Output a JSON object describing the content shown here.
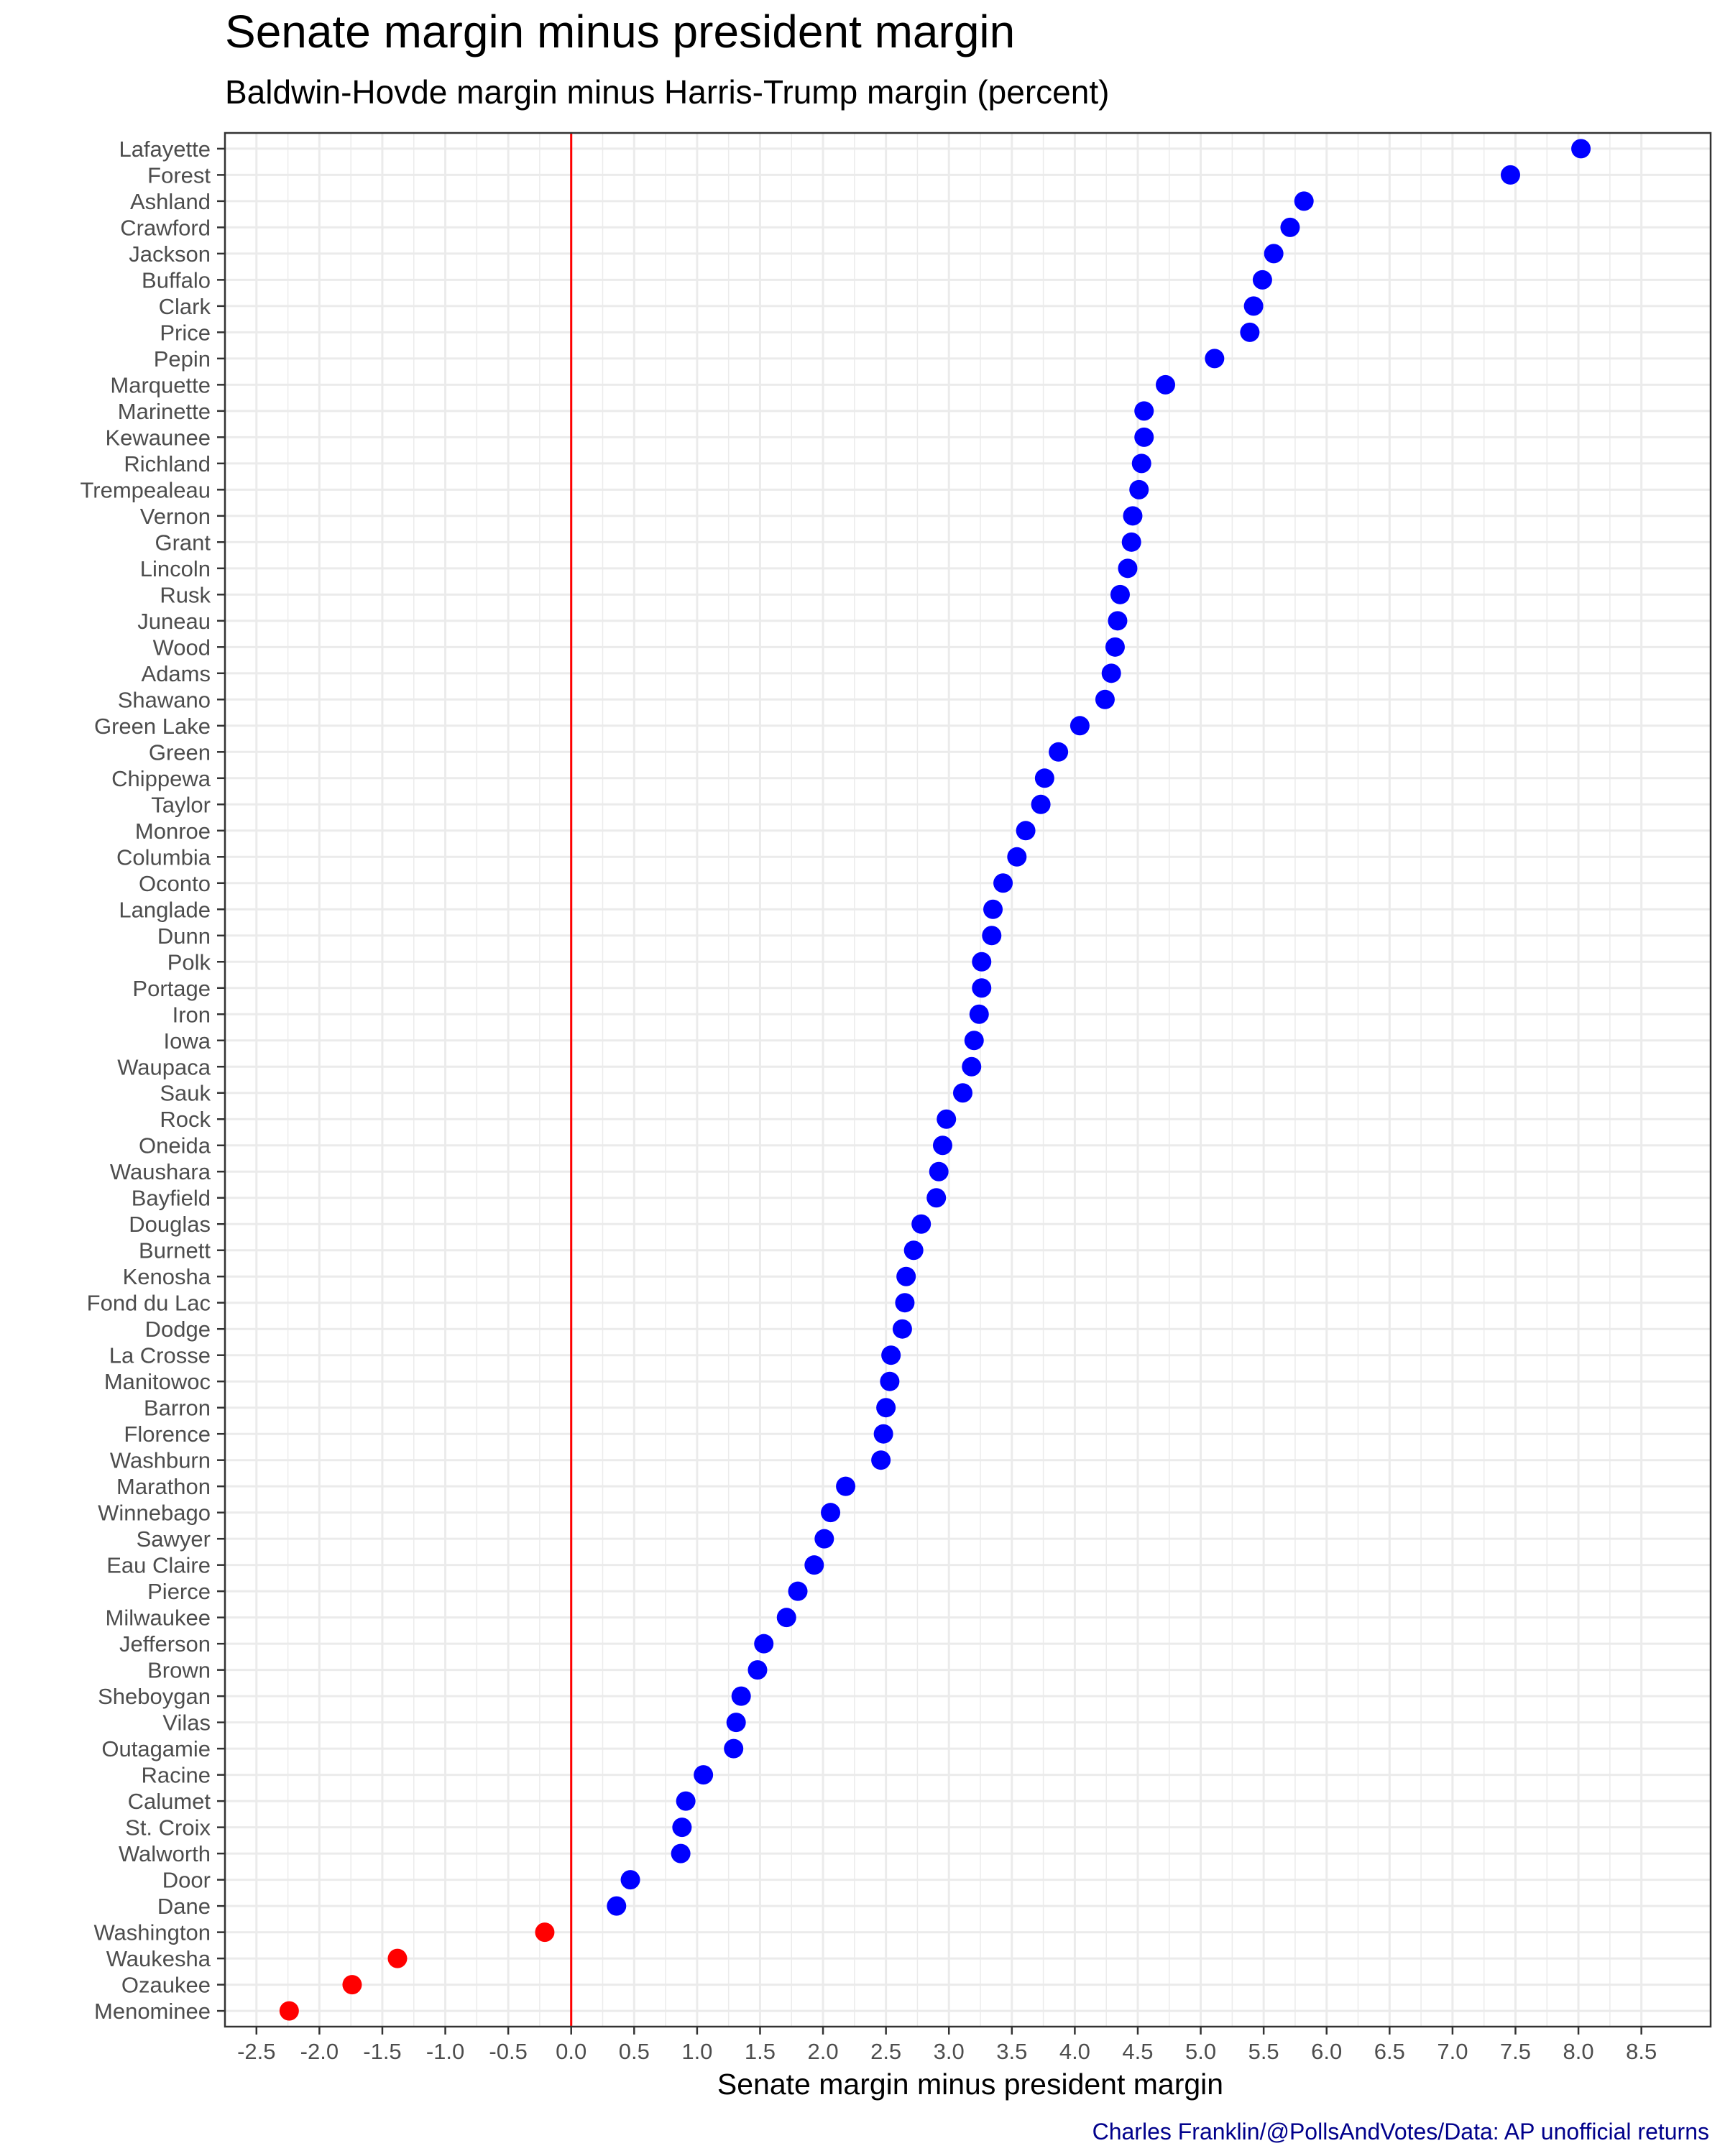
{
  "title": "Senate margin minus president margin",
  "subtitle": "Baldwin-Hovde margin minus Harris-Trump margin (percent)",
  "caption": "Charles Franklin/@PollsAndVotes/Data: AP unofficial returns",
  "chart_data": {
    "type": "scatter",
    "title": "Senate margin minus president margin",
    "subtitle": "Baldwin-Hovde margin minus Harris-Trump margin (percent)",
    "xlabel": "Senate margin minus president margin",
    "ylabel": "",
    "xlim": [
      -2.75,
      9.05
    ],
    "x_ticks": [
      -2.5,
      -2.0,
      -1.5,
      -1.0,
      -0.5,
      0.0,
      0.5,
      1.0,
      1.5,
      2.0,
      2.5,
      3.0,
      3.5,
      4.0,
      4.5,
      5.0,
      5.5,
      6.0,
      6.5,
      7.0,
      7.5,
      8.0,
      8.5
    ],
    "x_tick_labels": [
      "-2.5",
      "-2.0",
      "-1.5",
      "-1.0",
      "-0.5",
      "0.0",
      "0.5",
      "1.0",
      "1.5",
      "2.0",
      "2.5",
      "3.0",
      "3.5",
      "4.0",
      "4.5",
      "5.0",
      "5.5",
      "6.0",
      "6.5",
      "7.0",
      "7.5",
      "8.0",
      "8.5"
    ],
    "reference_line": {
      "x": 0,
      "color": "#ff0000"
    },
    "grid": true,
    "positive_color": "#0000ff",
    "negative_color": "#ff0000",
    "points": [
      {
        "county": "Lafayette",
        "value": 8.02
      },
      {
        "county": "Forest",
        "value": 7.46
      },
      {
        "county": "Ashland",
        "value": 5.82
      },
      {
        "county": "Crawford",
        "value": 5.71
      },
      {
        "county": "Jackson",
        "value": 5.58
      },
      {
        "county": "Buffalo",
        "value": 5.49
      },
      {
        "county": "Clark",
        "value": 5.42
      },
      {
        "county": "Price",
        "value": 5.39
      },
      {
        "county": "Pepin",
        "value": 5.11
      },
      {
        "county": "Marquette",
        "value": 4.72
      },
      {
        "county": "Marinette",
        "value": 4.55
      },
      {
        "county": "Kewaunee",
        "value": 4.55
      },
      {
        "county": "Richland",
        "value": 4.53
      },
      {
        "county": "Trempealeau",
        "value": 4.51
      },
      {
        "county": "Vernon",
        "value": 4.46
      },
      {
        "county": "Grant",
        "value": 4.45
      },
      {
        "county": "Lincoln",
        "value": 4.42
      },
      {
        "county": "Rusk",
        "value": 4.36
      },
      {
        "county": "Juneau",
        "value": 4.34
      },
      {
        "county": "Wood",
        "value": 4.32
      },
      {
        "county": "Adams",
        "value": 4.29
      },
      {
        "county": "Shawano",
        "value": 4.24
      },
      {
        "county": "Green Lake",
        "value": 4.04
      },
      {
        "county": "Green",
        "value": 3.87
      },
      {
        "county": "Chippewa",
        "value": 3.76
      },
      {
        "county": "Taylor",
        "value": 3.73
      },
      {
        "county": "Monroe",
        "value": 3.61
      },
      {
        "county": "Columbia",
        "value": 3.54
      },
      {
        "county": "Oconto",
        "value": 3.43
      },
      {
        "county": "Langlade",
        "value": 3.35
      },
      {
        "county": "Dunn",
        "value": 3.34
      },
      {
        "county": "Polk",
        "value": 3.26
      },
      {
        "county": "Portage",
        "value": 3.26
      },
      {
        "county": "Iron",
        "value": 3.24
      },
      {
        "county": "Iowa",
        "value": 3.2
      },
      {
        "county": "Waupaca",
        "value": 3.18
      },
      {
        "county": "Sauk",
        "value": 3.11
      },
      {
        "county": "Rock",
        "value": 2.98
      },
      {
        "county": "Oneida",
        "value": 2.95
      },
      {
        "county": "Waushara",
        "value": 2.92
      },
      {
        "county": "Bayfield",
        "value": 2.9
      },
      {
        "county": "Douglas",
        "value": 2.78
      },
      {
        "county": "Burnett",
        "value": 2.72
      },
      {
        "county": "Kenosha",
        "value": 2.66
      },
      {
        "county": "Fond du Lac",
        "value": 2.65
      },
      {
        "county": "Dodge",
        "value": 2.63
      },
      {
        "county": "La Crosse",
        "value": 2.54
      },
      {
        "county": "Manitowoc",
        "value": 2.53
      },
      {
        "county": "Barron",
        "value": 2.5
      },
      {
        "county": "Florence",
        "value": 2.48
      },
      {
        "county": "Washburn",
        "value": 2.46
      },
      {
        "county": "Marathon",
        "value": 2.18
      },
      {
        "county": "Winnebago",
        "value": 2.06
      },
      {
        "county": "Sawyer",
        "value": 2.01
      },
      {
        "county": "Eau Claire",
        "value": 1.93
      },
      {
        "county": "Pierce",
        "value": 1.8
      },
      {
        "county": "Milwaukee",
        "value": 1.71
      },
      {
        "county": "Jefferson",
        "value": 1.53
      },
      {
        "county": "Brown",
        "value": 1.48
      },
      {
        "county": "Sheboygan",
        "value": 1.35
      },
      {
        "county": "Vilas",
        "value": 1.31
      },
      {
        "county": "Outagamie",
        "value": 1.29
      },
      {
        "county": "Racine",
        "value": 1.05
      },
      {
        "county": "Calumet",
        "value": 0.91
      },
      {
        "county": "St. Croix",
        "value": 0.88
      },
      {
        "county": "Walworth",
        "value": 0.87
      },
      {
        "county": "Door",
        "value": 0.47
      },
      {
        "county": "Dane",
        "value": 0.36
      },
      {
        "county": "Washington",
        "value": -0.21
      },
      {
        "county": "Waukesha",
        "value": -1.38
      },
      {
        "county": "Ozaukee",
        "value": -1.74
      },
      {
        "county": "Menominee",
        "value": -2.24
      }
    ]
  }
}
